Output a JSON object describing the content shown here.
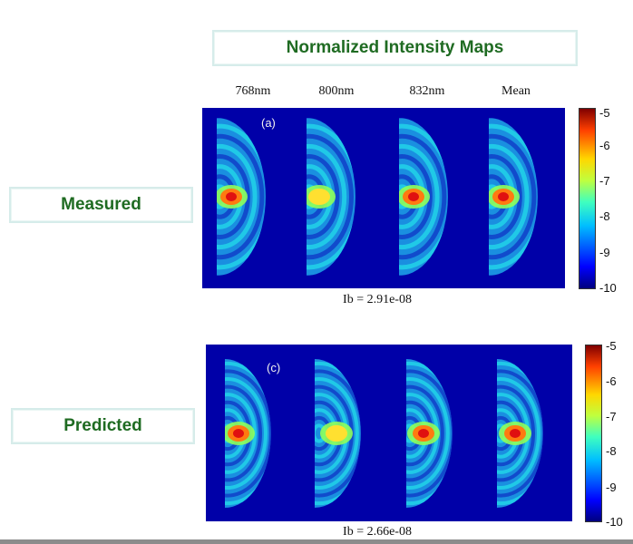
{
  "title": "Normalized Intensity Maps",
  "row_labels": {
    "measured": "Measured",
    "predicted": "Predicted"
  },
  "columns": [
    "768nm",
    "800nm",
    "832nm",
    "Mean"
  ],
  "panels": {
    "measured": {
      "letter": "(a)",
      "ib": "Ib = 2.91e-08"
    },
    "predicted": {
      "letter": "(c)",
      "ib": "Ib = 2.66e-08"
    }
  },
  "colorbar_ticks": [
    "-5",
    "-6",
    "-7",
    "-8",
    "-9",
    "-10"
  ],
  "colors": {
    "background": "#0000a8",
    "label_text": "#1f6b22",
    "label_border": "#d6ecea"
  }
}
